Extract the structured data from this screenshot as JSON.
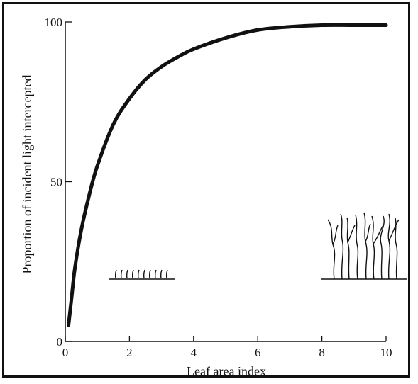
{
  "chart_data": {
    "type": "line",
    "title": "",
    "xlabel": "Leaf area index",
    "ylabel": "Proportion of incident light intercepted",
    "xlim": [
      0,
      10
    ],
    "ylim": [
      0,
      100
    ],
    "x_ticks": [
      "0",
      "2",
      "4",
      "6",
      "8",
      "10"
    ],
    "y_ticks": [
      "0",
      "50",
      "100"
    ],
    "grid": false,
    "series": [
      {
        "x": [
          0.1,
          0.2,
          0.3,
          0.5,
          0.75,
          1,
          1.5,
          2,
          2.5,
          3,
          3.5,
          4,
          5,
          6,
          7,
          8,
          9,
          10
        ],
        "y": [
          5,
          14,
          23,
          35,
          46,
          55,
          68,
          76,
          82,
          86,
          89,
          91.5,
          95,
          97.5,
          98.5,
          99,
          99,
          99
        ]
      }
    ],
    "colors": {
      "curve": "#111111",
      "axes": "#111111"
    },
    "insets": [
      {
        "name": "short-sparse-canopy-sketch",
        "icon": "short-shoots-illustration"
      },
      {
        "name": "tall-dense-canopy-sketch",
        "icon": "tall-shoots-illustration"
      }
    ]
  }
}
